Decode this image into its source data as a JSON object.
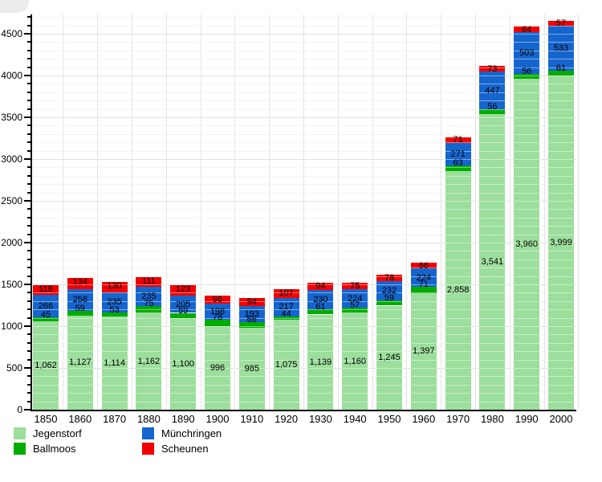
{
  "chart_data": {
    "type": "bar",
    "stacked": true,
    "title": "",
    "xlabel": "",
    "ylabel": "",
    "categories": [
      "1850",
      "1860",
      "1870",
      "1880",
      "1890",
      "1900",
      "1910",
      "1920",
      "1930",
      "1940",
      "1950",
      "1960",
      "1970",
      "1980",
      "1990",
      "2000"
    ],
    "series": [
      {
        "name": "Jegenstorf",
        "color": "#9CDE9C",
        "values": [
          1062,
          1127,
          1114,
          1162,
          1100,
          996,
          985,
          1075,
          1139,
          1160,
          1245,
          1397,
          2858,
          3541,
          3960,
          3999
        ]
      },
      {
        "name": "Ballmoos",
        "color": "#00AC00",
        "values": [
          45,
          59,
          53,
          75,
          59,
          78,
          66,
          44,
          61,
          57,
          59,
          71,
          63,
          56,
          56,
          61
        ]
      },
      {
        "name": "Münchringen",
        "color": "#1565CE",
        "values": [
          266,
          258,
          235,
          235,
          205,
          198,
          193,
          217,
          230,
          224,
          232,
          224,
          271,
          447,
          503,
          533
        ]
      },
      {
        "name": "Scheunen",
        "color": "#F20000",
        "values": [
          118,
          134,
          130,
          111,
          123,
          96,
          94,
          107,
          94,
          75,
          78,
          66,
          71,
          73,
          64,
          57
        ]
      }
    ],
    "ylim": [
      0,
      4730
    ],
    "ytick_labels": [
      "0",
      "500",
      "1000",
      "1500",
      "2000",
      "2500",
      "3000",
      "3500",
      "4000",
      "4500"
    ],
    "ytick_interval": 500,
    "minor_gridline_interval": 100,
    "grid": true,
    "legend_position": "bottom"
  },
  "legend": {
    "items": [
      {
        "label": "Jegenstorf",
        "color": "#9CDE9C"
      },
      {
        "label": "Ballmoos",
        "color": "#00AC00"
      },
      {
        "label": "Münchringen",
        "color": "#1565CE"
      },
      {
        "label": "Scheunen",
        "color": "#F20000"
      }
    ]
  }
}
